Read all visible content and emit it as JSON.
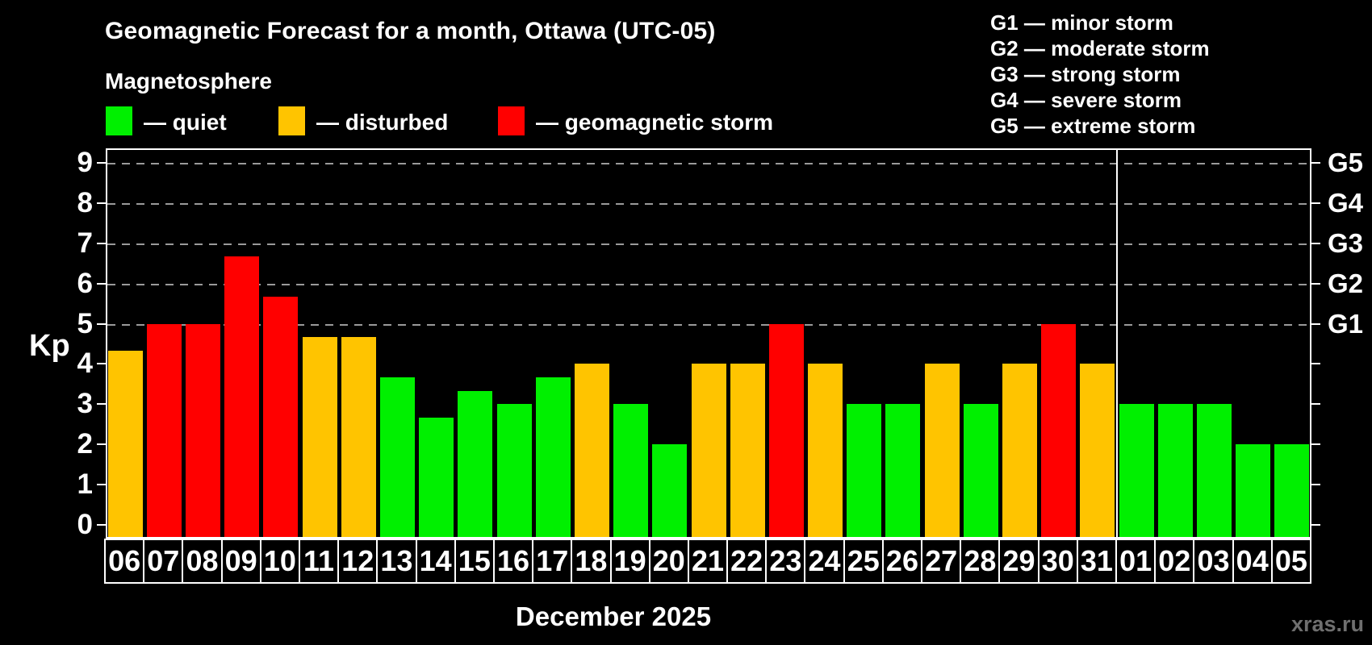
{
  "header": {
    "title": "Geomagnetic Forecast for a month, Ottawa (UTC-05)",
    "subtitle": "Magnetosphere"
  },
  "legend": {
    "items": [
      {
        "name": "quiet",
        "label": "— quiet",
        "color": "#00f000"
      },
      {
        "name": "disturbed",
        "label": "— disturbed",
        "color": "#ffc400"
      },
      {
        "name": "storm",
        "label": "— geomagnetic storm",
        "color": "#ff0000"
      }
    ]
  },
  "storm_scale": {
    "lines": [
      "G1 — minor storm",
      "G2 — moderate storm",
      "G3 — strong storm",
      "G4 — severe storm",
      "G5 — extreme storm"
    ]
  },
  "axes": {
    "y_title": "Kp",
    "y_ticks": [
      "0",
      "1",
      "2",
      "3",
      "4",
      "5",
      "6",
      "7",
      "8",
      "9"
    ],
    "right_labels": [
      {
        "label": "G1",
        "kp": 5
      },
      {
        "label": "G2",
        "kp": 6
      },
      {
        "label": "G3",
        "kp": 7
      },
      {
        "label": "G4",
        "kp": 8
      },
      {
        "label": "G5",
        "kp": 9
      }
    ],
    "x_title": "December 2025"
  },
  "watermark": "xras.ru",
  "chart_data": {
    "type": "bar",
    "title": "Geomagnetic Forecast for a month, Ottawa (UTC-05)",
    "ylabel": "Kp",
    "xlabel": "December 2025",
    "ylim": [
      0,
      9
    ],
    "grid": "horizontal dashed gray lines at Kp 5,6,7,8,9 (G1–G5)",
    "legend_position": "top",
    "categories": [
      "06",
      "07",
      "08",
      "09",
      "10",
      "11",
      "12",
      "13",
      "14",
      "15",
      "16",
      "17",
      "18",
      "19",
      "20",
      "21",
      "22",
      "23",
      "24",
      "25",
      "26",
      "27",
      "28",
      "29",
      "30",
      "31",
      "01",
      "02",
      "03",
      "04",
      "05"
    ],
    "values": [
      4.33,
      5,
      5,
      6.67,
      5.67,
      4.67,
      4.67,
      3.67,
      2.67,
      3.33,
      3,
      3.67,
      4,
      3,
      2,
      4,
      4,
      5,
      4,
      3,
      3,
      4,
      3,
      4,
      5,
      4,
      3,
      3,
      3,
      2,
      2
    ],
    "statuses": [
      "disturbed",
      "storm",
      "storm",
      "storm",
      "storm",
      "disturbed",
      "disturbed",
      "quiet",
      "quiet",
      "quiet",
      "quiet",
      "quiet",
      "disturbed",
      "quiet",
      "quiet",
      "disturbed",
      "disturbed",
      "storm",
      "disturbed",
      "quiet",
      "quiet",
      "disturbed",
      "quiet",
      "disturbed",
      "storm",
      "disturbed",
      "quiet",
      "quiet",
      "quiet",
      "quiet",
      "quiet"
    ],
    "colors": {
      "quiet": "#00f000",
      "disturbed": "#ffc400",
      "storm": "#ff0000"
    },
    "month_divider_after_index": 25
  }
}
